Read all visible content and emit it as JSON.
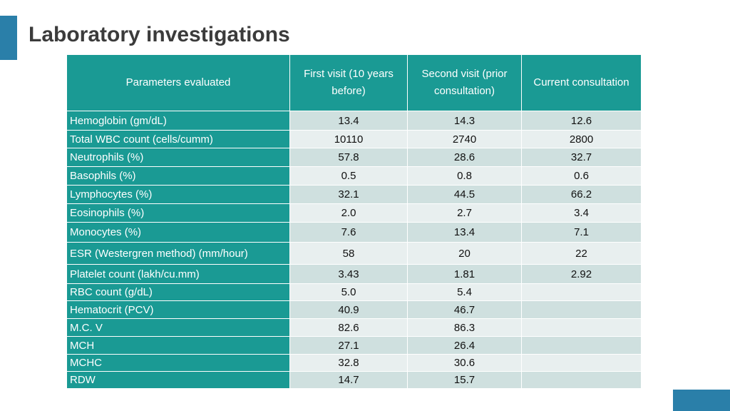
{
  "title": "Laboratory investigations",
  "table": {
    "header": [
      "Parameters evaluated",
      "First visit (10 years before)",
      "Second visit (prior consultation)",
      "Current consultation"
    ],
    "rows": [
      [
        "Hemoglobin (gm/dL)",
        "13.4",
        "14.3",
        "12.6"
      ],
      [
        "Total WBC count (cells/cumm)",
        "10110",
        "2740",
        "2800"
      ],
      [
        "Neutrophils (%)",
        "57.8",
        "28.6",
        "32.7"
      ],
      [
        "Basophils (%)",
        "0.5",
        "0.8",
        "0.6"
      ],
      [
        "Lymphocytes (%)",
        "32.1",
        "44.5",
        "66.2"
      ],
      [
        "Eosinophils (%)",
        "2.0",
        "2.7",
        "3.4"
      ],
      [
        "Monocytes (%)",
        "7.6",
        "13.4",
        "7.1"
      ],
      [
        "ESR (Westergren method) (mm/hour)",
        "58",
        "20",
        "22"
      ],
      [
        "Platelet count (lakh/cu.mm)",
        "3.43",
        "1.81",
        "2.92"
      ],
      [
        "RBC count (g/dL)",
        "5.0",
        "5.4",
        null
      ],
      [
        "Hematocrit (PCV)",
        "40.9",
        "46.7",
        null
      ],
      [
        "M.C. V",
        "82.6",
        "86.3",
        null
      ],
      [
        "MCH",
        "27.1",
        "26.4",
        null
      ],
      [
        "MCHC",
        "32.8",
        "30.6",
        null
      ],
      [
        "RDW",
        "14.7",
        "15.7",
        null
      ]
    ]
  }
}
